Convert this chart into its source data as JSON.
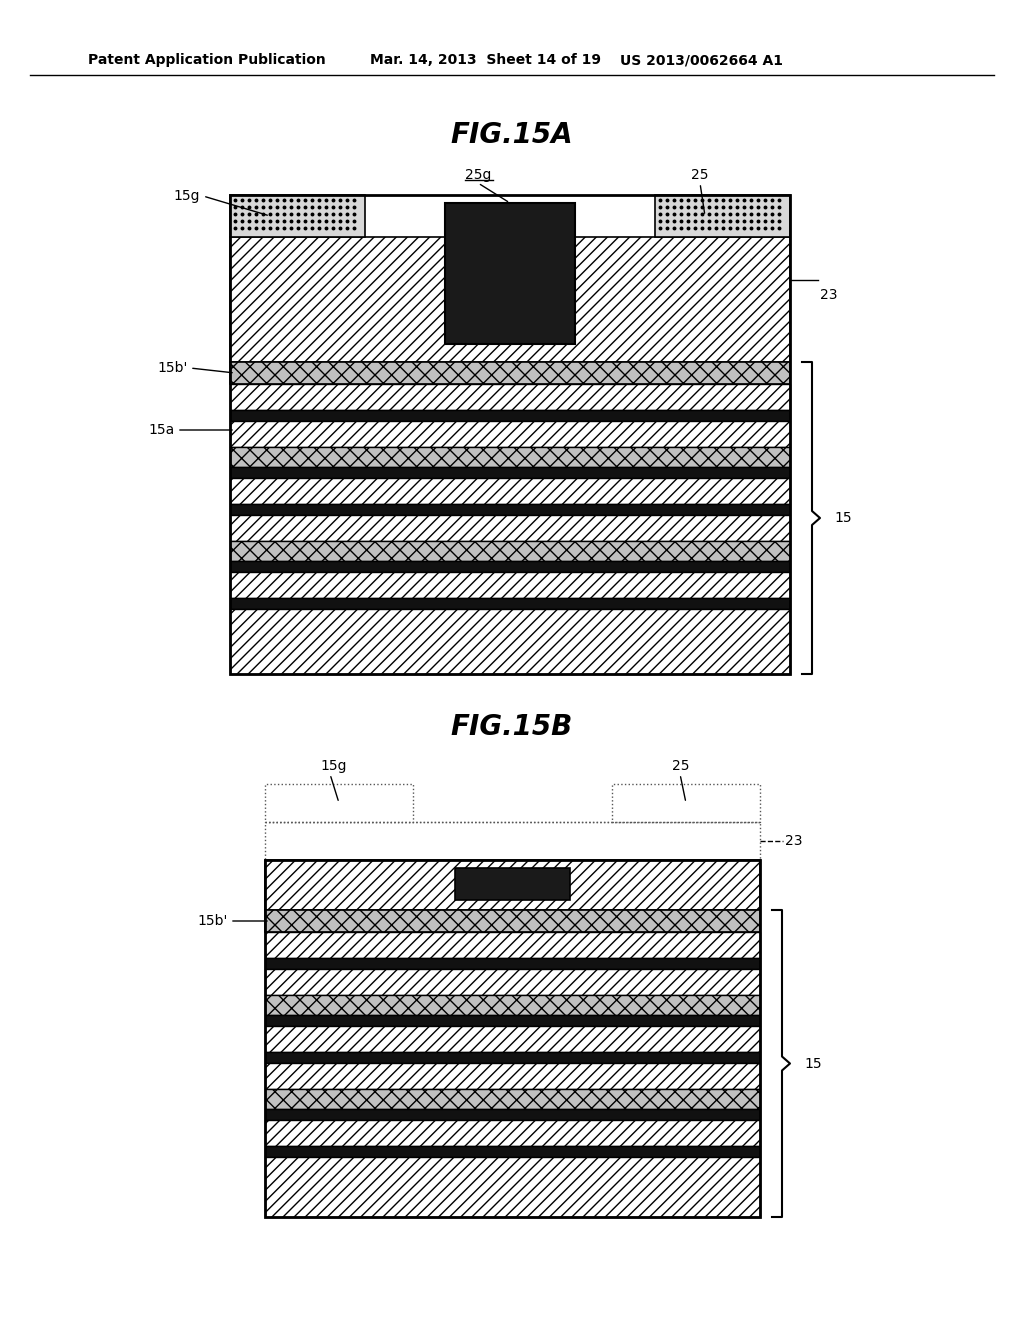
{
  "bg_color": "#ffffff",
  "header_text": "Patent Application Publication",
  "header_date": "Mar. 14, 2013  Sheet 14 of 19",
  "header_patent": "US 2013/0062664 A1",
  "fig15a_title": "FIG.15A",
  "fig15b_title": "FIG.15B",
  "labels": {
    "15g_a": "15g",
    "25g_a": "25g",
    "25_a": "25",
    "23_a": "23",
    "15b_a": "15b'",
    "15_a": "15",
    "15a_a": "15a",
    "15g_b": "15g",
    "25_b": "25",
    "23_b": "23",
    "15b_b": "15b'",
    "15_b": "15"
  }
}
